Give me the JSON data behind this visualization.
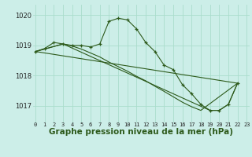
{
  "background_color": "#cceee8",
  "grid_color": "#aaddcc",
  "line_color": "#2d5a1b",
  "xlabel": "Graphe pression niveau de la mer (hPa)",
  "xlabel_fontsize": 7.5,
  "ylabel_ticks": [
    1017,
    1018,
    1019,
    1020
  ],
  "xlim": [
    -0.3,
    23.3
  ],
  "ylim": [
    1016.45,
    1020.35
  ],
  "xticks": [
    0,
    1,
    2,
    3,
    4,
    5,
    6,
    7,
    8,
    9,
    10,
    11,
    12,
    13,
    14,
    15,
    16,
    17,
    18,
    19,
    20,
    21,
    22,
    23
  ],
  "series": [
    {
      "x": [
        0,
        1,
        2,
        3,
        4,
        5,
        6,
        7,
        8,
        9,
        10,
        11,
        12,
        13,
        14,
        15,
        16,
        17,
        18,
        19,
        20,
        21,
        22
      ],
      "y": [
        1018.8,
        1018.9,
        1019.1,
        1019.05,
        1019.0,
        1019.0,
        1018.95,
        1019.05,
        1019.8,
        1019.9,
        1019.85,
        1019.55,
        1019.1,
        1018.8,
        1018.35,
        1018.2,
        1017.7,
        1017.4,
        1017.05,
        1016.85,
        1016.85,
        1017.05,
        1017.75
      ],
      "markers": true
    },
    {
      "x": [
        0,
        3,
        19,
        20,
        21,
        22
      ],
      "y": [
        1018.8,
        1019.05,
        1016.85,
        1016.85,
        1017.05,
        1017.75
      ],
      "markers": false
    },
    {
      "x": [
        0,
        22
      ],
      "y": [
        1018.8,
        1017.75
      ],
      "markers": false
    },
    {
      "x": [
        0,
        3,
        4,
        5,
        6,
        7,
        8,
        9,
        10,
        11,
        12,
        13,
        14,
        15,
        16,
        17,
        18,
        22
      ],
      "y": [
        1018.8,
        1019.05,
        1018.98,
        1018.88,
        1018.75,
        1018.62,
        1018.45,
        1018.3,
        1018.15,
        1017.98,
        1017.83,
        1017.65,
        1017.48,
        1017.3,
        1017.12,
        1016.97,
        1016.85,
        1017.75
      ],
      "markers": false
    }
  ]
}
